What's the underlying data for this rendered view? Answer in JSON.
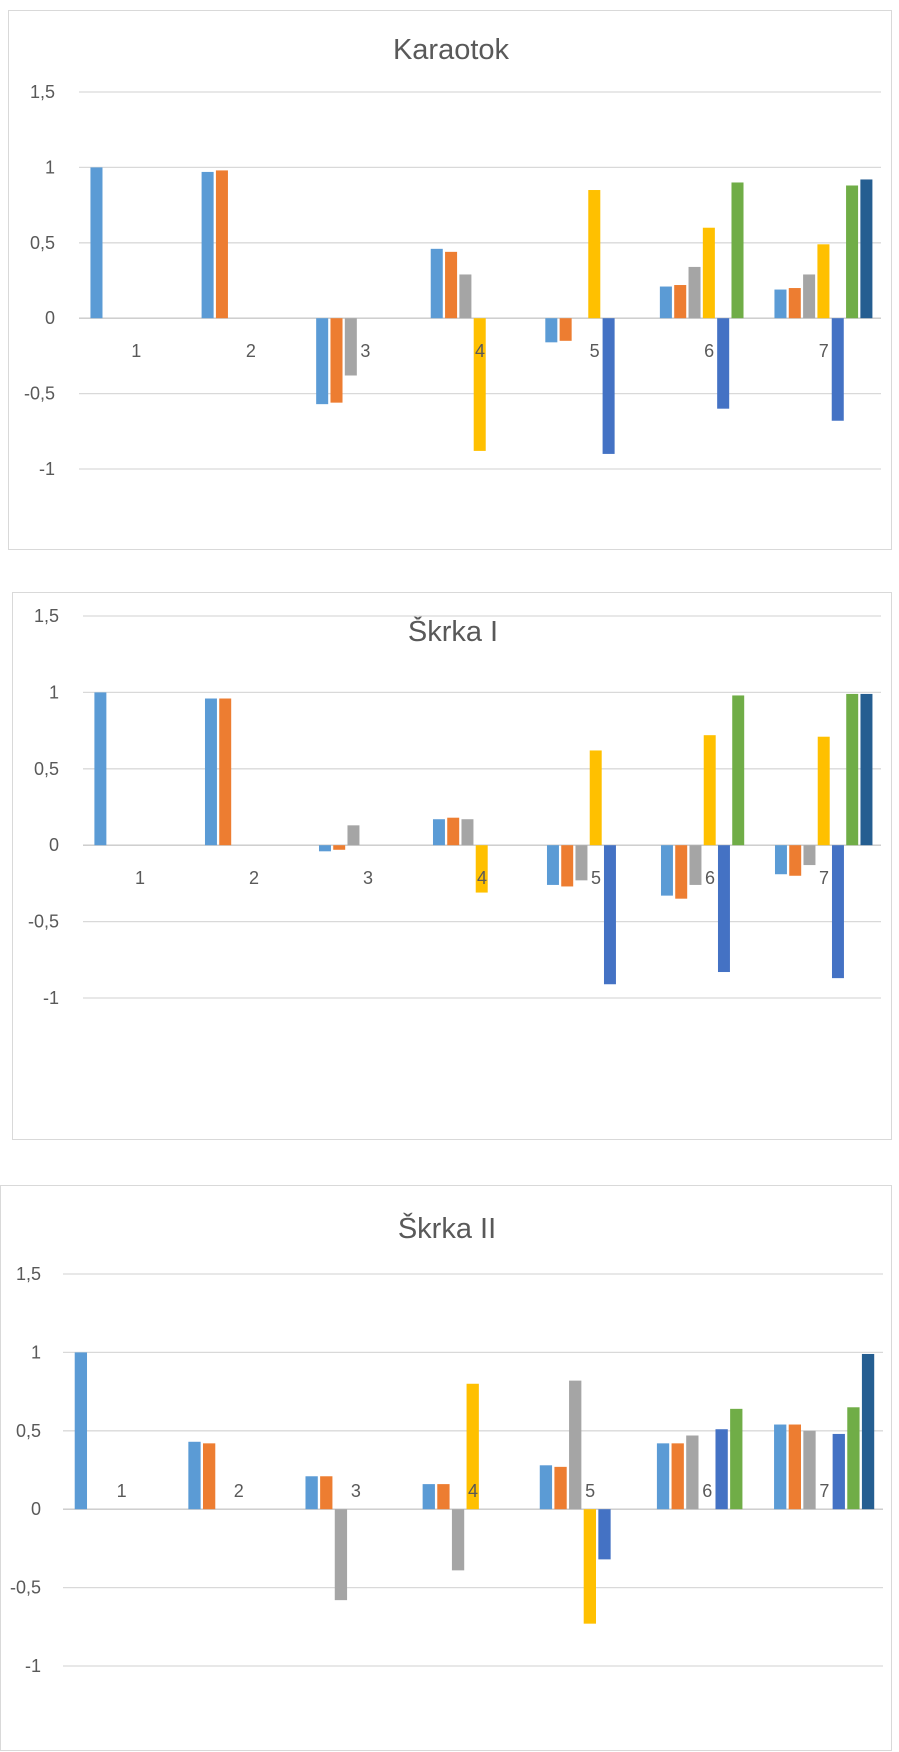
{
  "chart_data": [
    {
      "type": "bar",
      "title": "Karaotok",
      "categories": [
        "1",
        "2",
        "3",
        "4",
        "5",
        "6",
        "7"
      ],
      "ylim": [
        -1,
        1.5
      ],
      "yticks": [
        "1,5",
        "1",
        "0,5",
        "0",
        "-0,5",
        "-1"
      ],
      "grid": true,
      "series": [
        {
          "color": "#5B9BD5",
          "values": [
            1,
            0.97,
            -0.57,
            0.46,
            -0.16,
            0.21,
            0.19
          ]
        },
        {
          "color": "#ED7D31",
          "values": [
            null,
            0.98,
            -0.56,
            0.44,
            -0.15,
            0.22,
            0.2
          ]
        },
        {
          "color": "#A5A5A5",
          "values": [
            null,
            null,
            -0.38,
            0.29,
            null,
            0.34,
            0.29
          ]
        },
        {
          "color": "#FFC000",
          "values": [
            null,
            null,
            null,
            -0.88,
            0.85,
            0.6,
            0.49
          ]
        },
        {
          "color": "#4472C4",
          "values": [
            null,
            null,
            null,
            null,
            -0.9,
            -0.6,
            -0.68
          ]
        },
        {
          "color": "#70AD47",
          "values": [
            null,
            null,
            null,
            null,
            null,
            0.9,
            0.88
          ]
        },
        {
          "color": "#255E91",
          "values": [
            null,
            null,
            null,
            null,
            null,
            null,
            0.92
          ]
        }
      ]
    },
    {
      "type": "bar",
      "title": "Škrka I",
      "categories": [
        "1",
        "2",
        "3",
        "4",
        "5",
        "6",
        "7"
      ],
      "ylim": [
        -1,
        1.5
      ],
      "yticks": [
        "1,5",
        "1",
        "0,5",
        "0",
        "-0,5",
        "-1"
      ],
      "grid": true,
      "series": [
        {
          "color": "#5B9BD5",
          "values": [
            1,
            0.96,
            -0.04,
            0.17,
            -0.26,
            -0.33,
            -0.19
          ]
        },
        {
          "color": "#ED7D31",
          "values": [
            null,
            0.96,
            -0.03,
            0.18,
            -0.27,
            -0.35,
            -0.2
          ]
        },
        {
          "color": "#A5A5A5",
          "values": [
            null,
            null,
            0.13,
            0.17,
            -0.23,
            -0.26,
            -0.13
          ]
        },
        {
          "color": "#FFC000",
          "values": [
            null,
            null,
            null,
            -0.31,
            0.62,
            0.72,
            0.71
          ]
        },
        {
          "color": "#4472C4",
          "values": [
            null,
            null,
            null,
            null,
            -0.91,
            -0.83,
            -0.87
          ]
        },
        {
          "color": "#70AD47",
          "values": [
            null,
            null,
            null,
            null,
            null,
            0.98,
            0.99
          ]
        },
        {
          "color": "#255E91",
          "values": [
            null,
            null,
            null,
            null,
            null,
            null,
            0.99
          ]
        }
      ]
    },
    {
      "type": "bar",
      "title": "Škrka II",
      "categories": [
        "1",
        "2",
        "3",
        "4",
        "5",
        "6",
        "7"
      ],
      "ylim": [
        -1,
        1.5
      ],
      "yticks": [
        "1,5",
        "1",
        "0,5",
        "0",
        "-0,5",
        "-1"
      ],
      "grid": true,
      "series": [
        {
          "color": "#5B9BD5",
          "values": [
            1,
            0.43,
            0.21,
            0.16,
            0.28,
            0.42,
            0.54
          ]
        },
        {
          "color": "#ED7D31",
          "values": [
            null,
            0.42,
            0.21,
            0.16,
            0.27,
            0.42,
            0.54
          ]
        },
        {
          "color": "#A5A5A5",
          "values": [
            null,
            null,
            -0.58,
            -0.39,
            0.82,
            0.47,
            0.5
          ]
        },
        {
          "color": "#FFC000",
          "values": [
            null,
            null,
            null,
            0.8,
            -0.73,
            null,
            null
          ]
        },
        {
          "color": "#4472C4",
          "values": [
            null,
            null,
            null,
            null,
            -0.32,
            0.51,
            0.48
          ]
        },
        {
          "color": "#70AD47",
          "values": [
            null,
            null,
            null,
            null,
            null,
            0.64,
            0.65
          ]
        },
        {
          "color": "#255E91",
          "values": [
            null,
            null,
            null,
            null,
            null,
            null,
            0.99
          ]
        }
      ]
    }
  ]
}
